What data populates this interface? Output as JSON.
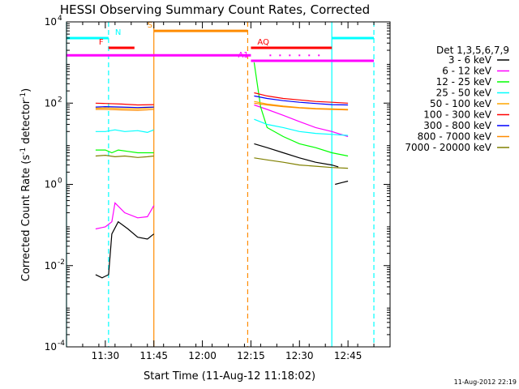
{
  "chart_data": {
    "type": "line",
    "title": "HESSI Observing Summary Count Rates, Corrected",
    "xlabel": "Start Time (11-Aug-12 11:18:02)",
    "ylabel": "Corrected Count Rate (s",
    "ylabel_sup1": "-1",
    "ylabel_mid": " detector",
    "ylabel_sup2": "-1",
    "ylabel_end": ")",
    "x_unit": "minutes",
    "xlim": [
      "11:18",
      "12:58"
    ],
    "ylim": [
      0.0001,
      10000
    ],
    "yscale": "log",
    "x_ticks": [
      "11:30",
      "11:45",
      "12:00",
      "12:15",
      "12:30",
      "12:45"
    ],
    "y_ticks": [
      {
        "value": 0.0001,
        "base": "10",
        "exp": "-4"
      },
      {
        "value": 0.01,
        "base": "10",
        "exp": "-2"
      },
      {
        "value": 1,
        "base": "10",
        "exp": "0"
      },
      {
        "value": 100,
        "base": "10",
        "exp": "2"
      },
      {
        "value": 10000,
        "base": "10",
        "exp": "4"
      }
    ],
    "legend_title": "Det 1,3,5,6,7,9",
    "legend_placement": "right",
    "series": [
      {
        "name": "3 - 6 keV",
        "color": "#000000",
        "segments": [
          {
            "x": [
              "11:27",
              "11:29",
              "11:31",
              "11:32",
              "11:34",
              "11:37",
              "11:40",
              "11:43",
              "11:45"
            ],
            "y": [
              0.006,
              0.005,
              0.006,
              0.06,
              0.12,
              0.08,
              0.05,
              0.045,
              0.06
            ]
          },
          {
            "x": [
              "12:16",
              "12:20",
              "12:25",
              "12:30",
              "12:35",
              "12:40",
              "12:42"
            ],
            "y": [
              10,
              8,
              6,
              4.5,
              3.5,
              3,
              2.7
            ]
          },
          {
            "x": [
              "12:41",
              "12:43",
              "12:45"
            ],
            "y": [
              1,
              1.1,
              1.2
            ]
          }
        ]
      },
      {
        "name": "6 - 12 keV",
        "color": "#ff00ff",
        "segments": [
          {
            "x": [
              "11:27",
              "11:30",
              "11:32",
              "11:33",
              "11:36",
              "11:40",
              "11:43",
              "11:45"
            ],
            "y": [
              0.08,
              0.09,
              0.12,
              0.35,
              0.2,
              0.15,
              0.16,
              0.3
            ]
          },
          {
            "x": [
              "12:16",
              "12:20",
              "12:25",
              "12:30",
              "12:35",
              "12:40",
              "12:45"
            ],
            "y": [
              90,
              70,
              50,
              35,
              25,
              20,
              15
            ]
          }
        ]
      },
      {
        "name": "12 - 25 keV",
        "color": "#00ff00",
        "segments": [
          {
            "x": [
              "11:27",
              "11:30",
              "11:32",
              "11:34",
              "11:37",
              "11:40",
              "11:43",
              "11:45"
            ],
            "y": [
              7,
              7,
              6,
              7,
              6.5,
              6,
              6,
              6
            ]
          },
          {
            "x": [
              "12:16",
              "12:18",
              "12:20",
              "12:25",
              "12:30",
              "12:35",
              "12:40",
              "12:45"
            ],
            "y": [
              1000,
              80,
              25,
              15,
              10,
              8,
              6,
              5
            ]
          }
        ]
      },
      {
        "name": "25 - 50 keV",
        "color": "#00ffff",
        "segments": [
          {
            "x": [
              "11:27",
              "11:30",
              "11:33",
              "11:36",
              "11:40",
              "11:43",
              "11:45"
            ],
            "y": [
              20,
              20,
              22,
              20,
              21,
              19,
              22
            ]
          },
          {
            "x": [
              "12:16",
              "12:20",
              "12:25",
              "12:30",
              "12:35",
              "12:40",
              "12:45"
            ],
            "y": [
              40,
              30,
              25,
              20,
              18,
              17,
              16
            ]
          }
        ]
      },
      {
        "name": "50 - 100 keV",
        "color": "#ffa500",
        "segments": [
          {
            "x": [
              "11:27",
              "11:30",
              "11:35",
              "11:40",
              "11:45"
            ],
            "y": [
              75,
              76,
              74,
              72,
              78
            ]
          },
          {
            "x": [
              "12:16",
              "12:20",
              "12:25",
              "12:30",
              "12:35",
              "12:40",
              "12:45"
            ],
            "y": [
              110,
              95,
              85,
              78,
              74,
              72,
              70
            ]
          }
        ]
      },
      {
        "name": "100 - 300 keV",
        "color": "#ff0000",
        "segments": [
          {
            "x": [
              "11:27",
              "11:30",
              "11:35",
              "11:40",
              "11:45"
            ],
            "y": [
              100,
              98,
              95,
              90,
              92
            ]
          },
          {
            "x": [
              "12:16",
              "12:20",
              "12:25",
              "12:30",
              "12:35",
              "12:40",
              "12:45"
            ],
            "y": [
              180,
              150,
              130,
              120,
              110,
              105,
              100
            ]
          }
        ]
      },
      {
        "name": "300 - 800 keV",
        "color": "#0000ff",
        "segments": [
          {
            "x": [
              "11:27",
              "11:30",
              "11:35",
              "11:40",
              "11:45"
            ],
            "y": [
              80,
              82,
              80,
              78,
              80
            ]
          },
          {
            "x": [
              "12:16",
              "12:20",
              "12:25",
              "12:30",
              "12:35",
              "12:40",
              "12:45"
            ],
            "y": [
              150,
              130,
              115,
              105,
              98,
              92,
              90
            ]
          }
        ]
      },
      {
        "name": "800 - 7000 keV",
        "color": "#ff8c00",
        "segments": [
          {
            "x": [
              "11:27",
              "11:30",
              "11:35",
              "11:40",
              "11:45"
            ],
            "y": [
              70,
              70,
              68,
              66,
              70
            ]
          },
          {
            "x": [
              "12:16",
              "12:20",
              "12:25",
              "12:30",
              "12:35",
              "12:40",
              "12:45"
            ],
            "y": [
              100,
              90,
              82,
              76,
              72,
              70,
              68
            ]
          }
        ]
      },
      {
        "name": "7000 - 20000 keV",
        "color": "#808000",
        "segments": [
          {
            "x": [
              "11:27",
              "11:30",
              "11:33",
              "11:36",
              "11:40",
              "11:43",
              "11:45"
            ],
            "y": [
              5,
              5.2,
              4.8,
              5,
              4.6,
              4.8,
              5
            ]
          },
          {
            "x": [
              "12:16",
              "12:20",
              "12:25",
              "12:30",
              "12:35",
              "12:40",
              "12:45"
            ],
            "y": [
              4.5,
              4,
              3.5,
              3,
              2.8,
              2.6,
              2.5
            ]
          }
        ]
      }
    ],
    "vertical_lines": [
      {
        "x": "11:18",
        "color": "#00ffff",
        "style": "solid"
      },
      {
        "x": "11:31",
        "color": "#00ffff",
        "style": "dashed"
      },
      {
        "x": "11:45",
        "color": "#ff8c00",
        "style": "solid"
      },
      {
        "x": "12:14",
        "color": "#ff8c00",
        "style": "dashed"
      },
      {
        "x": "12:40",
        "color": "#00ffff",
        "style": "solid"
      },
      {
        "x": "12:53",
        "color": "#00ffff",
        "style": "dashed"
      }
    ],
    "flag_bars": [
      {
        "label": "N",
        "color": "#00ffff",
        "y": 4000,
        "segments": [
          [
            "11:18",
            "11:31"
          ],
          [
            "12:40",
            "12:53"
          ]
        ],
        "label_x": "11:33"
      },
      {
        "label": "F",
        "color": "#ff0000",
        "y": 2300,
        "segments": [
          [
            "11:31",
            "11:39"
          ]
        ],
        "label_x": "11:28"
      },
      {
        "label": "S",
        "color": "#ff8c00",
        "y": 6000,
        "segments": [
          [
            "11:45",
            "12:14"
          ]
        ],
        "label_x": "11:43"
      },
      {
        "label": "AQ",
        "color": "#ff0000",
        "y": 2300,
        "segments": [
          [
            "12:15",
            "12:40"
          ]
        ],
        "label_x": "12:17"
      },
      {
        "label": "A1",
        "color": "#ff00ff",
        "y": 1100,
        "segments": [
          [
            "12:15",
            "12:53"
          ]
        ],
        "label_x": "12:11"
      },
      {
        "label": "",
        "color": "#ff00ff",
        "y": 1500,
        "segments": [
          [
            "11:18",
            "12:15"
          ]
        ],
        "label_x": ""
      }
    ],
    "timestamp": "11-Aug-2012 22:19"
  }
}
